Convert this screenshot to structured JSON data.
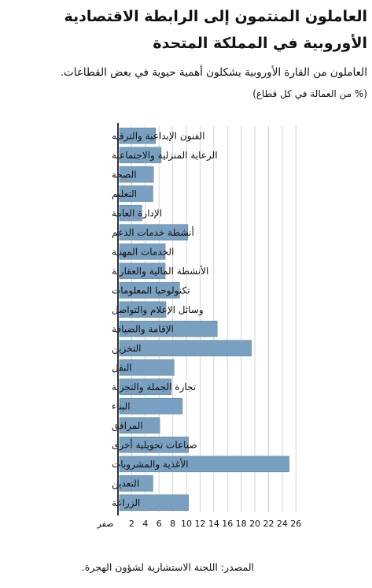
{
  "header": {
    "title": "العاملون المنتمون إلى الرابطة الاقتصادية الأوروبية في المملكة المتحدة",
    "subtitle": "العاملون من القارة الأوروبية يشكلون أهمية حيوية في بعض القطاعات.",
    "unit": "(% من العمالة في كل قطاع)"
  },
  "footer": {
    "source": "المصدر: اللجنة الاستشارية لشؤون الهجرة."
  },
  "chart_data": {
    "type": "bar",
    "orientation": "horizontal",
    "categories": [
      "الفنون الإبداعية والترفيه",
      "الرعاية المنزلية والاجتماعية",
      "الصحة",
      "التعليم",
      "الإدارة العامة",
      "أنشطة خدمات الدعم",
      "الخدمات المهنية",
      "الأنشطة المالية والعقارية",
      "تكنولوجيا المعلومات",
      "وسائل الإعلام والتواصل",
      "الإقامة والضيافة",
      "التخزين",
      "النقل",
      "تجارة الجملة والتجزئة",
      "البناء",
      "المرافق",
      "صناعات تحويلية أخرى",
      "الأغذية والمشروبات",
      "التعدين",
      "الزراعة"
    ],
    "values": [
      5.5,
      6.3,
      5.2,
      5.1,
      3.5,
      10.2,
      6.9,
      6.9,
      9.0,
      7.0,
      14.5,
      19.5,
      8.2,
      7.8,
      9.4,
      6.1,
      10.3,
      25.0,
      5.1,
      10.3
    ],
    "xticks": [
      "صفر",
      "2",
      "4",
      "6",
      "8",
      "10",
      "12",
      "14",
      "16",
      "18",
      "20",
      "22",
      "24",
      "26"
    ],
    "xlim": [
      0,
      27
    ],
    "grid": true,
    "bar_color": "#7aa0c1",
    "grid_color": "#d4d4d4"
  }
}
